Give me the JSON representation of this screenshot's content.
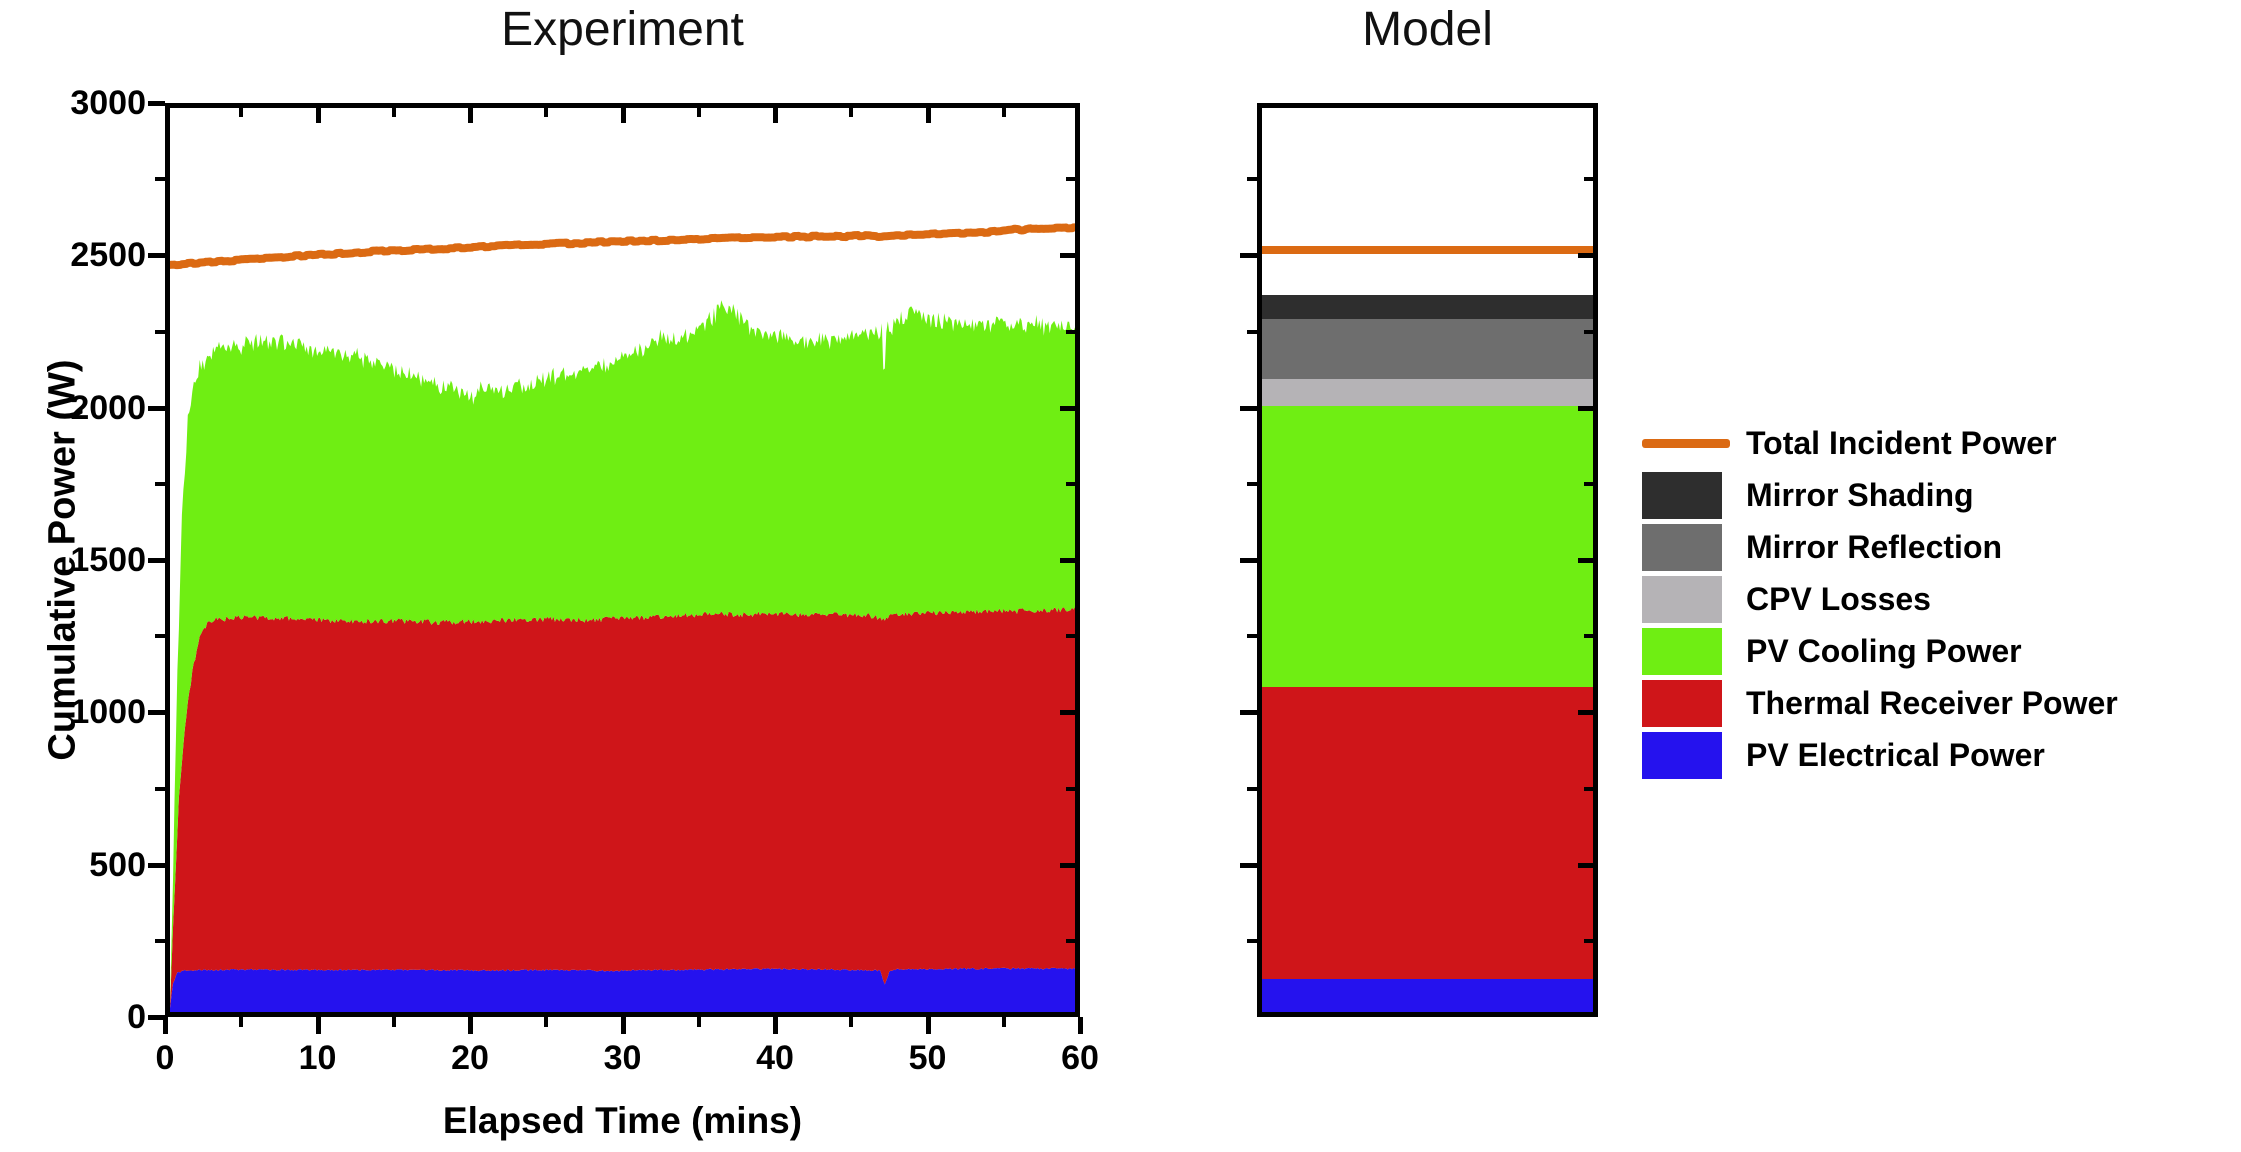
{
  "page": {
    "background": "#FFFFFF"
  },
  "colors": {
    "axis": "#000000",
    "total_incident": "#DB6A13",
    "mirror_shading": "#2E2E2E",
    "mirror_reflection": "#6E6E6E",
    "cpv_losses": "#B5B3B6",
    "pv_cooling": "#6FEE13",
    "thermal_receiver": "#CF1519",
    "pv_electrical": "#2512EE"
  },
  "legend": {
    "items": [
      {
        "label": "Total Incident Power",
        "color": "#DB6A13",
        "kind": "line",
        "icon": "orange-line-swatch"
      },
      {
        "label": "Mirror Shading",
        "color": "#2E2E2E",
        "kind": "box",
        "icon": "dark-gray-swatch"
      },
      {
        "label": "Mirror Reflection",
        "color": "#6E6E6E",
        "kind": "box",
        "icon": "gray-swatch"
      },
      {
        "label": "CPV Losses",
        "color": "#B5B3B6",
        "kind": "box",
        "icon": "light-gray-swatch"
      },
      {
        "label": "PV Cooling Power",
        "color": "#6FEE13",
        "kind": "box",
        "icon": "green-swatch"
      },
      {
        "label": "Thermal Receiver Power",
        "color": "#CF1519",
        "kind": "box",
        "icon": "red-swatch"
      },
      {
        "label": "PV Electrical Power",
        "color": "#2512EE",
        "kind": "box",
        "icon": "blue-swatch"
      }
    ]
  },
  "chart_data": [
    {
      "type": "area",
      "title": "Experiment",
      "xlabel": "Elapsed Time (mins)",
      "ylabel": "Cumulative Power (W)",
      "xlim": [
        0,
        60
      ],
      "ylim": [
        0,
        3000
      ],
      "x_ticks": [
        0,
        10,
        20,
        30,
        40,
        50,
        60
      ],
      "x_minor_ticks": [
        5,
        15,
        25,
        35,
        45,
        55
      ],
      "y_ticks": [
        0,
        500,
        1000,
        1500,
        2000,
        2500,
        3000
      ],
      "y_minor_ticks": [
        250,
        750,
        1250,
        1750,
        2250,
        2750
      ],
      "grid": false,
      "note": "Stacked areas; series values are cumulative tops in W vs minutes",
      "series": [
        {
          "name": "PV Electrical Power",
          "color": "#2512EE",
          "role": "stack-top-1",
          "noise_amp": 3,
          "seed": 7,
          "cumulative_top": [
            [
              0,
              15
            ],
            [
              0.2,
              95
            ],
            [
              0.5,
              130
            ],
            [
              1,
              138
            ],
            [
              5,
              141
            ],
            [
              10,
              139
            ],
            [
              15,
              140
            ],
            [
              20,
              138
            ],
            [
              25,
              139
            ],
            [
              30,
              137
            ],
            [
              35,
              141
            ],
            [
              40,
              143
            ],
            [
              44,
              141
            ],
            [
              46,
              139
            ],
            [
              47.1,
              138
            ],
            [
              47.4,
              88
            ],
            [
              47.7,
              136
            ],
            [
              48,
              141
            ],
            [
              50,
              143
            ],
            [
              55,
              144
            ],
            [
              60,
              144
            ]
          ]
        },
        {
          "name": "Thermal Receiver Power",
          "color": "#CF1519",
          "role": "stack-top-2",
          "noise_amp": 9,
          "seed": 3,
          "cumulative_top": [
            [
              0,
              25
            ],
            [
              0.2,
              280
            ],
            [
              0.6,
              720
            ],
            [
              1,
              950
            ],
            [
              1.5,
              1140
            ],
            [
              2,
              1245
            ],
            [
              2.5,
              1288
            ],
            [
              3,
              1302
            ],
            [
              5,
              1310
            ],
            [
              8,
              1306
            ],
            [
              10,
              1300
            ],
            [
              12,
              1296
            ],
            [
              15,
              1298
            ],
            [
              18,
              1293
            ],
            [
              20,
              1296
            ],
            [
              22,
              1300
            ],
            [
              25,
              1304
            ],
            [
              28,
              1301
            ],
            [
              30,
              1306
            ],
            [
              32,
              1311
            ],
            [
              34,
              1316
            ],
            [
              35,
              1319
            ],
            [
              36,
              1321
            ],
            [
              38,
              1319
            ],
            [
              40,
              1323
            ],
            [
              42,
              1319
            ],
            [
              44,
              1321
            ],
            [
              45,
              1316
            ],
            [
              46,
              1319
            ],
            [
              47.4,
              1302
            ],
            [
              48,
              1321
            ],
            [
              50,
              1323
            ],
            [
              52,
              1326
            ],
            [
              54,
              1331
            ],
            [
              56,
              1329
            ],
            [
              58,
              1333
            ],
            [
              60,
              1336
            ]
          ]
        },
        {
          "name": "PV Cooling Power",
          "color": "#6FEE13",
          "role": "stack-top-3",
          "noise_amp": 38,
          "seed": 11,
          "cumulative_top": [
            [
              0,
              40
            ],
            [
              0.2,
              450
            ],
            [
              0.5,
              1150
            ],
            [
              0.8,
              1650
            ],
            [
              1.2,
              1980
            ],
            [
              1.7,
              2100
            ],
            [
              2.2,
              2160
            ],
            [
              3,
              2190
            ],
            [
              4,
              2205
            ],
            [
              5,
              2215
            ],
            [
              6,
              2222
            ],
            [
              7,
              2228
            ],
            [
              8,
              2218
            ],
            [
              9,
              2208
            ],
            [
              10,
              2198
            ],
            [
              11,
              2188
            ],
            [
              12,
              2182
            ],
            [
              13,
              2162
            ],
            [
              14,
              2148
            ],
            [
              15,
              2138
            ],
            [
              16,
              2112
            ],
            [
              17,
              2098
            ],
            [
              18,
              2078
            ],
            [
              19,
              2058
            ],
            [
              20,
              2048
            ],
            [
              21,
              2062
            ],
            [
              22,
              2068
            ],
            [
              23,
              2082
            ],
            [
              24,
              2088
            ],
            [
              25,
              2102
            ],
            [
              26,
              2108
            ],
            [
              27,
              2122
            ],
            [
              28,
              2132
            ],
            [
              29,
              2152
            ],
            [
              30,
              2178
            ],
            [
              31,
              2192
            ],
            [
              32,
              2222
            ],
            [
              33,
              2242
            ],
            [
              34,
              2252
            ],
            [
              35,
              2262
            ],
            [
              36,
              2302
            ],
            [
              36.8,
              2348
            ],
            [
              37.2,
              2332
            ],
            [
              38,
              2292
            ],
            [
              39,
              2252
            ],
            [
              40,
              2247
            ],
            [
              41,
              2242
            ],
            [
              42,
              2227
            ],
            [
              43,
              2232
            ],
            [
              44,
              2232
            ],
            [
              45,
              2242
            ],
            [
              46,
              2252
            ],
            [
              47.2,
              2250
            ],
            [
              47.35,
              2095
            ],
            [
              47.5,
              2255
            ],
            [
              48,
              2282
            ],
            [
              48.8,
              2322
            ],
            [
              49.3,
              2342
            ],
            [
              50,
              2302
            ],
            [
              51,
              2287
            ],
            [
              52,
              2282
            ],
            [
              53,
              2277
            ],
            [
              54,
              2282
            ],
            [
              55,
              2287
            ],
            [
              56,
              2282
            ],
            [
              57,
              2277
            ],
            [
              58,
              2280
            ],
            [
              59,
              2272
            ],
            [
              60,
              2262
            ]
          ]
        },
        {
          "name": "Total Incident Power",
          "color": "#DB6A13",
          "role": "line",
          "noise_amp": 3,
          "seed": 19,
          "stroke_width": 8,
          "values": [
            [
              0,
              2480
            ],
            [
              2,
              2486
            ],
            [
              4,
              2493
            ],
            [
              6,
              2500
            ],
            [
              8,
              2507
            ],
            [
              10,
              2514
            ],
            [
              12,
              2520
            ],
            [
              14,
              2525
            ],
            [
              16,
              2529
            ],
            [
              18,
              2533
            ],
            [
              20,
              2538
            ],
            [
              22,
              2543
            ],
            [
              24,
              2547
            ],
            [
              26,
              2550
            ],
            [
              28,
              2554
            ],
            [
              30,
              2557
            ],
            [
              32,
              2560
            ],
            [
              34,
              2563
            ],
            [
              36,
              2566
            ],
            [
              38,
              2569
            ],
            [
              40,
              2571
            ],
            [
              42,
              2573
            ],
            [
              44,
              2576
            ],
            [
              45,
              2574
            ],
            [
              46,
              2577
            ],
            [
              47,
              2574
            ],
            [
              48,
              2578
            ],
            [
              50,
              2581
            ],
            [
              52,
              2585
            ],
            [
              54,
              2588
            ],
            [
              55,
              2591
            ],
            [
              56,
              2597
            ],
            [
              56.5,
              2593
            ],
            [
              57,
              2599
            ],
            [
              58,
              2601
            ],
            [
              60,
              2604
            ]
          ]
        }
      ]
    },
    {
      "type": "bar",
      "title": "Model",
      "ylim": [
        0,
        3000
      ],
      "y_ticks": [
        500,
        1000,
        1500,
        2000,
        2500
      ],
      "y_minor_ticks": [
        250,
        750,
        1250,
        1750,
        2250,
        2750
      ],
      "grid": false,
      "stack_bottom_to_top": [
        {
          "name": "PV Electrical Power",
          "value": 110,
          "color": "#2512EE"
        },
        {
          "name": "Thermal Receiver Power",
          "value": 970,
          "color": "#CF1519"
        },
        {
          "name": "PV Cooling Power",
          "value": 930,
          "color": "#6FEE13"
        },
        {
          "name": "CPV Losses",
          "value": 90,
          "color": "#B5B3B6"
        },
        {
          "name": "Mirror Reflection",
          "value": 200,
          "color": "#6E6E6E"
        },
        {
          "name": "Mirror Shading",
          "value": 80,
          "color": "#2E2E2E"
        }
      ],
      "overlay_line": {
        "name": "Total Incident Power",
        "value": 2530,
        "color": "#DB6A13"
      }
    }
  ]
}
